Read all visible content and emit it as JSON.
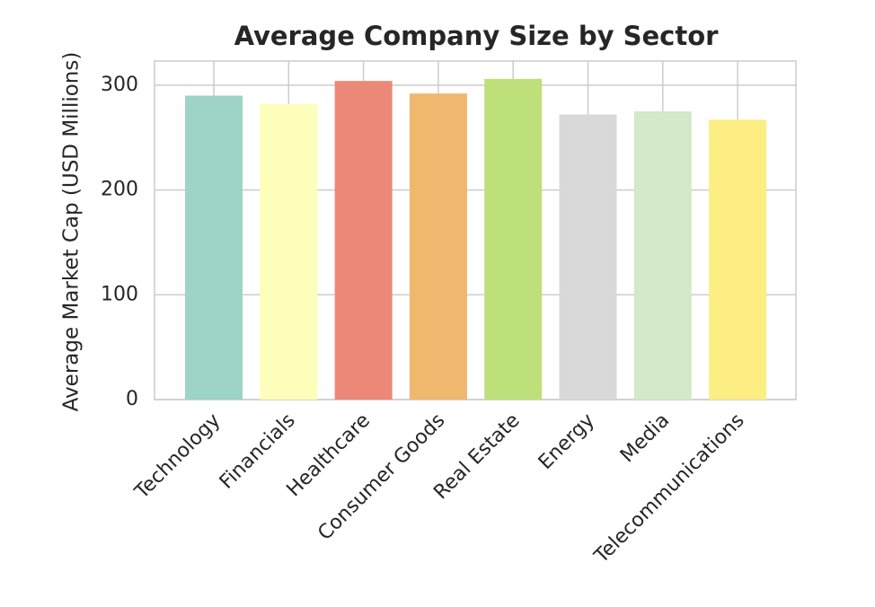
{
  "chart_data": {
    "type": "bar",
    "title": "Average Company Size by Sector",
    "ylabel": "Average Market Cap (USD Millions)",
    "categories": [
      "Technology",
      "Financials",
      "Healthcare",
      "Consumer Goods",
      "Real Estate",
      "Energy",
      "Media",
      "Telecommunications"
    ],
    "values": [
      290,
      282,
      304,
      292,
      306,
      272,
      275,
      267
    ],
    "colors": [
      "#9ed3c7",
      "#fefebb",
      "#ec8878",
      "#f0b76e",
      "#bde07a",
      "#d9d9d9",
      "#d3e9c8",
      "#fcee82"
    ],
    "ylim": [
      0,
      323
    ],
    "yticks": [
      0,
      100,
      200,
      300
    ],
    "grid": true
  }
}
